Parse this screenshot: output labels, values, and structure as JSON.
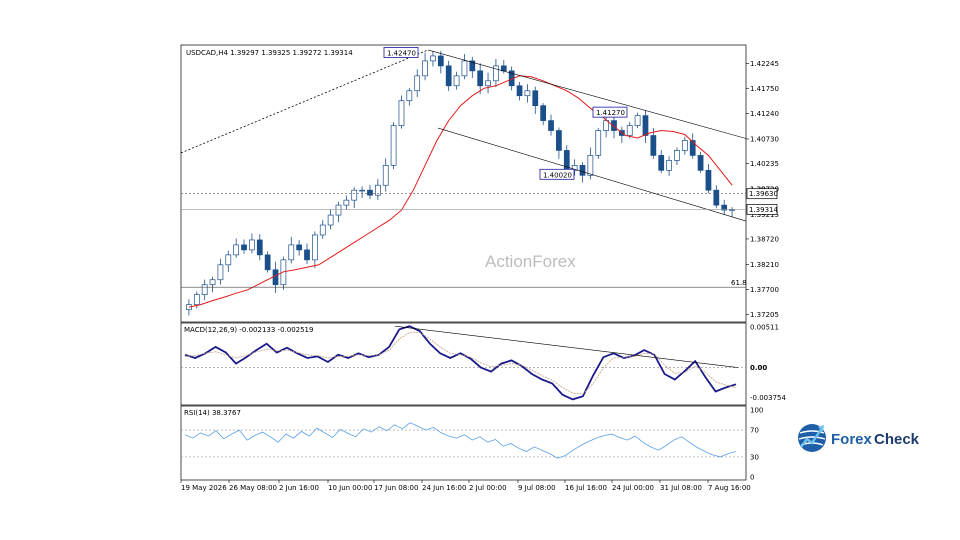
{
  "chart_data": [
    {
      "type": "candlestick",
      "symbol_header": "USDCAD,H4  1.39297 1.39325 1.39272 1.39314",
      "watermark": "ActionForex",
      "price_axis_ticks": [
        1.42245,
        1.4175,
        1.4124,
        1.4073,
        1.40235,
        1.3972,
        1.3872,
        1.3821,
        1.377,
        1.37205
      ],
      "price_range": [
        1.3705,
        1.4262
      ],
      "price_tags": [
        {
          "value": 1.3963,
          "label": "1.39630",
          "style": "outline"
        },
        {
          "value": 1.39314,
          "label": "1.39314",
          "style": "outline"
        }
      ],
      "axis_tick_labels_partial": [
        {
          "value": 1.3921,
          "label": "1.39215"
        },
        {
          "value": 1.3972,
          "label": "1.39720"
        }
      ],
      "annotations": [
        {
          "label": "1.42470",
          "value": 1.4247
        },
        {
          "label": "1.41270",
          "value": 1.4127
        },
        {
          "label": "1.40020",
          "value": 1.4002
        }
      ],
      "fib_level": {
        "label": "61.8",
        "value": 1.3775
      },
      "close_series": [
        1.374,
        1.376,
        1.378,
        1.379,
        1.382,
        1.384,
        1.386,
        1.385,
        1.387,
        1.384,
        1.381,
        1.378,
        1.383,
        1.386,
        1.385,
        1.383,
        1.388,
        1.39,
        1.392,
        1.394,
        1.395,
        1.397,
        1.397,
        1.396,
        1.398,
        1.402,
        1.41,
        1.415,
        1.417,
        1.42,
        1.423,
        1.424,
        1.422,
        1.418,
        1.42,
        1.423,
        1.421,
        1.418,
        1.419,
        1.422,
        1.421,
        1.418,
        1.416,
        1.417,
        1.414,
        1.411,
        1.409,
        1.405,
        1.401,
        1.402,
        1.4,
        1.404,
        1.409,
        1.411,
        1.409,
        1.408,
        1.41,
        1.412,
        1.408,
        1.404,
        1.401,
        1.403,
        1.405,
        1.407,
        1.404,
        1.401,
        1.397,
        1.394,
        1.393,
        1.3931
      ],
      "ma_series": [
        1.3735,
        1.374,
        1.3748,
        1.3755,
        1.3763,
        1.377,
        1.3782,
        1.3794,
        1.3806,
        1.381,
        1.3815,
        1.382,
        1.3835,
        1.385,
        1.3865,
        1.388,
        1.3895,
        1.391,
        1.393,
        1.397,
        1.402,
        1.407,
        1.411,
        1.414,
        1.416,
        1.4175,
        1.418,
        1.419,
        1.42,
        1.4198,
        1.419,
        1.418,
        1.417,
        1.4155,
        1.4135,
        1.4118,
        1.4098,
        1.408,
        1.4075,
        1.4085,
        1.409,
        1.4088,
        1.4082,
        1.406,
        1.404,
        1.401,
        1.398
      ],
      "x_tick_labels": [
        "19 May 2026",
        "26 May 08:00",
        "2 Jun 16:00",
        "10 Jun 00:00",
        "17 Jun 08:00",
        "24 Jun 16:00",
        "2 Jul 00:00",
        "9 Jul 08:00",
        "16 Jul 16:00",
        "24 Jul 00:00",
        "31 Jul 08:00",
        "7 Aug 16:00"
      ]
    },
    {
      "type": "line",
      "indicator": "MACD(12,26,9) -0.002133 -0.002519",
      "axis_ticks": [
        {
          "value": 0.00511,
          "label": "0.00511"
        },
        {
          "value": 0.0,
          "label": "0.00"
        },
        {
          "value": -0.003754,
          "label": "-0.003754"
        }
      ],
      "range": [
        -0.0047,
        0.0056
      ],
      "series": [
        {
          "name": "MACD",
          "values": [
            0.0016,
            0.0012,
            0.0018,
            0.0026,
            0.0019,
            0.0005,
            0.0013,
            0.0022,
            0.003,
            0.0019,
            0.0025,
            0.0018,
            0.0012,
            0.0014,
            0.0007,
            0.0016,
            0.0012,
            0.0018,
            0.0013,
            0.0016,
            0.0026,
            0.0048,
            0.0052,
            0.0046,
            0.003,
            0.0018,
            0.0012,
            0.0018,
            0.0011,
            0.0,
            -0.0005,
            0.0005,
            0.0009,
            0.0002,
            -0.0008,
            -0.0015,
            -0.002,
            -0.0034,
            -0.004,
            -0.0036,
            -0.001,
            0.0013,
            0.0018,
            0.0012,
            0.0015,
            0.0022,
            0.0016,
            -0.0008,
            -0.0015,
            -0.0004,
            0.0008,
            -0.0012,
            -0.003,
            -0.0025,
            -0.0021
          ]
        },
        {
          "name": "Signal",
          "values": [
            0.0014,
            0.0015,
            0.0018,
            0.002,
            0.0016,
            0.0012,
            0.0015,
            0.002,
            0.0023,
            0.0021,
            0.0022,
            0.0019,
            0.0016,
            0.0015,
            0.0012,
            0.0014,
            0.0014,
            0.0016,
            0.0015,
            0.0016,
            0.0022,
            0.0036,
            0.0044,
            0.0044,
            0.0036,
            0.0026,
            0.0018,
            0.0016,
            0.0013,
            0.0006,
            0.0001,
            0.0003,
            0.0005,
            0.0003,
            -0.0003,
            -0.001,
            -0.0016,
            -0.0025,
            -0.0032,
            -0.0033,
            -0.002,
            0.0,
            0.0012,
            0.0013,
            0.0014,
            0.0018,
            0.0017,
            0.0003,
            -0.0007,
            -0.0006,
            0.0002,
            -0.0006,
            -0.0018,
            -0.0022,
            -0.0025
          ]
        }
      ]
    },
    {
      "type": "line",
      "indicator": "RSI(14) 38.3767",
      "axis_ticks": [
        100,
        70,
        30,
        0
      ],
      "range": [
        0,
        100
      ],
      "levels": [
        70,
        30
      ],
      "series": [
        {
          "name": "RSI",
          "values": [
            63,
            58,
            66,
            61,
            69,
            57,
            64,
            70,
            55,
            62,
            67,
            60,
            52,
            64,
            58,
            68,
            61,
            73,
            66,
            59,
            71,
            65,
            60,
            72,
            67,
            75,
            69,
            78,
            72,
            81,
            76,
            70,
            74,
            66,
            61,
            58,
            63,
            55,
            60,
            52,
            56,
            46,
            50,
            43,
            38,
            45,
            40,
            35,
            28,
            32,
            40,
            47,
            53,
            58,
            62,
            64,
            59,
            55,
            61,
            52,
            45,
            40,
            47,
            55,
            60,
            52,
            44,
            38,
            33,
            30,
            35,
            38
          ]
        }
      ]
    }
  ],
  "logo": {
    "text_prefix": "Forex",
    "text_suffix": "Check",
    "prefix_color": "#1f5fa8",
    "suffix_color": "#1d3c6e"
  },
  "colors": {
    "bull": "#1b4f8a",
    "ma": "#e41a1a",
    "macd": "#1a1a8c",
    "signal": "#c0a080",
    "rsi": "#5aa0e6"
  }
}
